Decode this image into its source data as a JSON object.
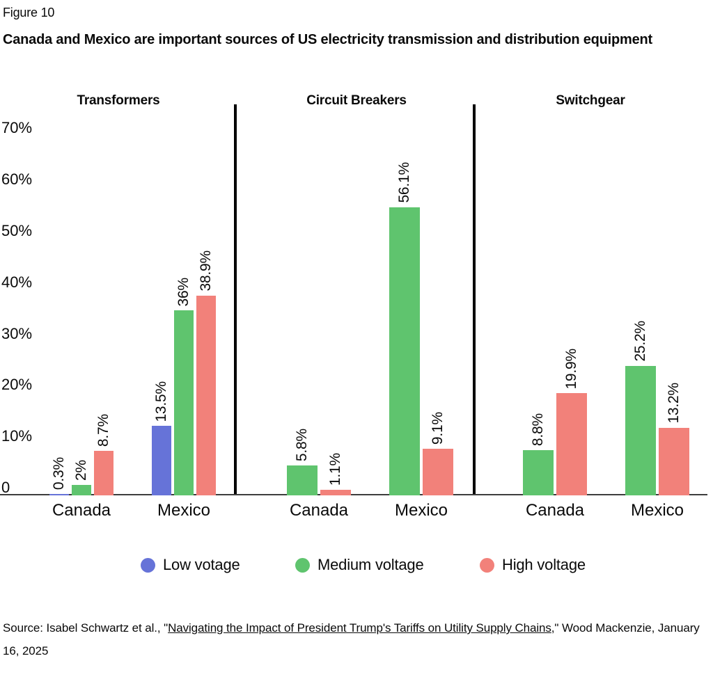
{
  "figure_label": "Figure 10",
  "title": "Canada and Mexico are important sources of US electricity transmission and distribution equipment",
  "legend": [
    {
      "label": "Low votage",
      "color": "#6673d8"
    },
    {
      "label": "Medium voltage",
      "color": "#5fc46e"
    },
    {
      "label": "High voltage",
      "color": "#f2817a"
    }
  ],
  "source": {
    "prefix": "Source: Isabel Schwartz et al., \"",
    "link_text": "Navigating the Impact of President Trump's Tariffs on Utility Supply Chains",
    "suffix": ",\" Wood Mackenzie, January 16, 2025"
  },
  "chart_data": {
    "type": "bar",
    "unit": "percent",
    "grid": false,
    "legend_position": "bottom",
    "ylim": [
      0,
      76
    ],
    "ytick_values": [
      70,
      60,
      50,
      40,
      30,
      20,
      10,
      0
    ],
    "ytick_labels": [
      "70%",
      "60%",
      "50%",
      "40%",
      "30%",
      "20%",
      "10%",
      "0"
    ],
    "series_colors": {
      "Low votage": "#6673d8",
      "Medium voltage": "#5fc46e",
      "High voltage": "#f2817a"
    },
    "panels": [
      {
        "title": "Transformers",
        "groups": [
          {
            "category": "Canada",
            "bars": [
              {
                "series": "Low votage",
                "value": 0.3,
                "label": "0.3%"
              },
              {
                "series": "Medium voltage",
                "value": 2,
                "label": "2%"
              },
              {
                "series": "High voltage",
                "value": 8.7,
                "label": "8.7%"
              }
            ]
          },
          {
            "category": "Mexico",
            "bars": [
              {
                "series": "Low votage",
                "value": 13.5,
                "label": "13.5%"
              },
              {
                "series": "Medium voltage",
                "value": 36,
                "label": "36%"
              },
              {
                "series": "High voltage",
                "value": 38.9,
                "label": "38.9%"
              }
            ]
          }
        ]
      },
      {
        "title": "Circuit Breakers",
        "groups": [
          {
            "category": "Canada",
            "bars": [
              {
                "series": "Medium voltage",
                "value": 5.8,
                "label": "5.8%"
              },
              {
                "series": "High voltage",
                "value": 1.1,
                "label": "1.1%"
              }
            ]
          },
          {
            "category": "Mexico",
            "bars": [
              {
                "series": "Medium voltage",
                "value": 56.1,
                "label": "56.1%"
              },
              {
                "series": "High voltage",
                "value": 9.1,
                "label": "9.1%"
              }
            ]
          }
        ]
      },
      {
        "title": "Switchgear",
        "groups": [
          {
            "category": "Canada",
            "bars": [
              {
                "series": "Medium voltage",
                "value": 8.8,
                "label": "8.8%"
              },
              {
                "series": "High voltage",
                "value": 19.9,
                "label": "19.9%"
              }
            ]
          },
          {
            "category": "Mexico",
            "bars": [
              {
                "series": "Medium voltage",
                "value": 25.2,
                "label": "25.2%"
              },
              {
                "series": "High voltage",
                "value": 13.2,
                "label": "13.2%"
              }
            ]
          }
        ]
      }
    ]
  }
}
